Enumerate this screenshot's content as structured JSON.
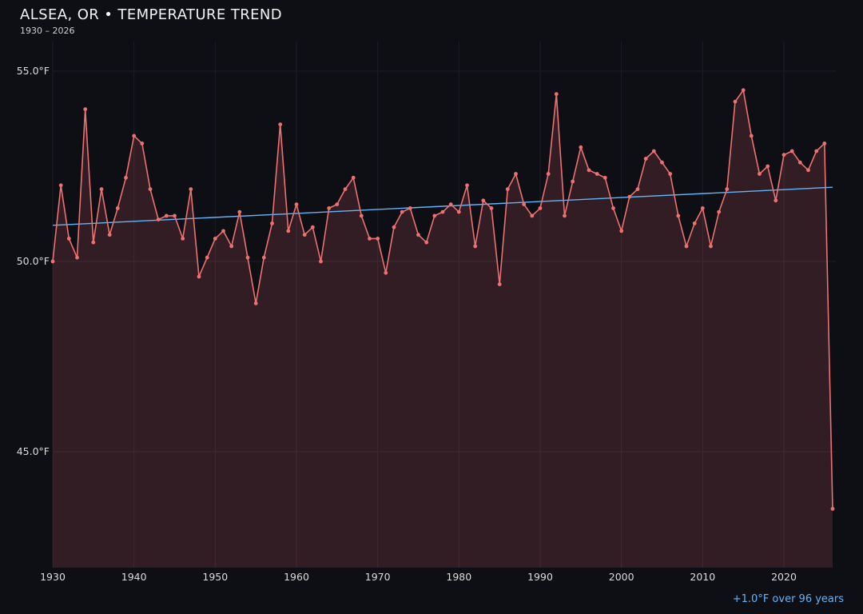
{
  "header": {
    "title": "ALSEA, OR • TEMPERATURE TREND",
    "subtitle": "1930 – 2026"
  },
  "footer": {
    "annotation": "+1.0°F over 96 years"
  },
  "chart_data": {
    "type": "line",
    "title": "ALSEA, OR • TEMPERATURE TREND",
    "subtitle": "1930 – 2026",
    "x_start": 1930,
    "x_end": 2026,
    "ylim": [
      42.0,
      55.6
    ],
    "grid": true,
    "legend": "none",
    "y_ticks": [
      {
        "value": 55,
        "label": "55.0°F"
      },
      {
        "value": 50,
        "label": "50.0°F"
      },
      {
        "value": 45,
        "label": "45.0°F"
      }
    ],
    "x_ticks": [
      {
        "value": 1930,
        "label": "1930"
      },
      {
        "value": 1940,
        "label": "1940"
      },
      {
        "value": 1950,
        "label": "1950"
      },
      {
        "value": 1960,
        "label": "1960"
      },
      {
        "value": 1970,
        "label": "1970"
      },
      {
        "value": 1980,
        "label": "1980"
      },
      {
        "value": 1990,
        "label": "1990"
      },
      {
        "value": 2000,
        "label": "2000"
      },
      {
        "value": 2010,
        "label": "2010"
      },
      {
        "value": 2020,
        "label": "2020"
      }
    ],
    "series": [
      {
        "name": "annual-mean-temperature-F",
        "values": [
          50.0,
          52.0,
          50.6,
          50.1,
          54.0,
          50.5,
          51.9,
          50.7,
          51.4,
          52.2,
          53.3,
          53.1,
          51.9,
          51.1,
          51.2,
          51.2,
          50.6,
          51.9,
          49.6,
          50.1,
          50.6,
          50.8,
          50.4,
          51.3,
          50.1,
          48.9,
          50.1,
          51.0,
          53.6,
          50.8,
          51.5,
          50.7,
          50.9,
          50.0,
          51.4,
          51.5,
          51.9,
          52.2,
          51.2,
          50.6,
          50.6,
          49.7,
          50.9,
          51.3,
          51.4,
          50.7,
          50.5,
          51.2,
          51.3,
          51.5,
          51.3,
          52.0,
          50.4,
          51.6,
          51.4,
          49.4,
          51.9,
          52.3,
          51.5,
          51.2,
          51.4,
          52.3,
          54.4,
          51.2,
          52.1,
          53.0,
          52.4,
          52.3,
          52.2,
          51.4,
          50.8,
          51.7,
          51.9,
          52.7,
          52.9,
          52.6,
          52.3,
          51.2,
          50.4,
          51.0,
          51.4,
          50.4,
          51.3,
          51.9,
          54.2,
          54.5,
          53.3,
          52.3,
          52.5,
          51.6,
          52.8,
          52.9,
          52.6,
          52.4,
          52.9,
          53.1,
          43.5
        ]
      }
    ],
    "trend": {
      "start_value": 50.95,
      "end_value": 51.95,
      "label": "+1.0°F over 96 years"
    },
    "colors": {
      "background": "#0e0e15",
      "line": "#ee7171",
      "point": "#ee7171",
      "fill": "rgba(238,113,113,0.16)",
      "trend": "#64b5f6",
      "grid": "#1d1d28",
      "axis_text": "#dcdcdc",
      "annotation": "#64b5f6"
    }
  }
}
